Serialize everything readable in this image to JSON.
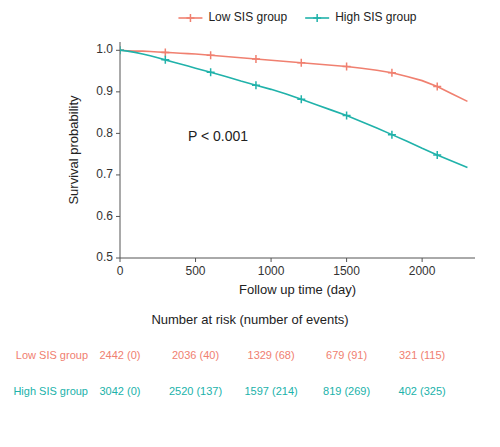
{
  "chart_data": {
    "type": "line",
    "x_label": "Follow up time (day)",
    "y_label": "Survival probability",
    "x": [
      0,
      50,
      100,
      150,
      200,
      250,
      300,
      350,
      400,
      450,
      500,
      600,
      700,
      800,
      900,
      1000,
      1100,
      1200,
      1300,
      1400,
      1500,
      1600,
      1700,
      1800,
      1900,
      2000,
      2100,
      2200,
      2300
    ],
    "series": [
      {
        "name": "Low SIS group",
        "color": "#F08070",
        "marker": "plus",
        "values": [
          1.0,
          0.999,
          0.998,
          0.998,
          0.997,
          0.996,
          0.995,
          0.994,
          0.993,
          0.992,
          0.991,
          0.988,
          0.985,
          0.982,
          0.979,
          0.976,
          0.973,
          0.97,
          0.967,
          0.964,
          0.961,
          0.957,
          0.952,
          0.946,
          0.937,
          0.927,
          0.913,
          0.895,
          0.877
        ],
        "marker_x": [
          0,
          300,
          600,
          900,
          1200,
          1500,
          1800,
          2100
        ],
        "marker_values": [
          1.0,
          0.995,
          0.988,
          0.979,
          0.97,
          0.961,
          0.946,
          0.913
        ]
      },
      {
        "name": "High SIS group",
        "color": "#20B2AA",
        "marker": "plus",
        "values": [
          1.0,
          0.998,
          0.995,
          0.991,
          0.987,
          0.982,
          0.977,
          0.972,
          0.967,
          0.962,
          0.957,
          0.947,
          0.937,
          0.926,
          0.916,
          0.906,
          0.895,
          0.882,
          0.869,
          0.856,
          0.843,
          0.828,
          0.813,
          0.797,
          0.781,
          0.764,
          0.748,
          0.733,
          0.718
        ],
        "marker_x": [
          0,
          300,
          600,
          900,
          1200,
          1500,
          1800,
          2100
        ],
        "marker_values": [
          1.0,
          0.977,
          0.947,
          0.916,
          0.882,
          0.843,
          0.797,
          0.748
        ]
      }
    ],
    "xlim": [
      0,
      2350
    ],
    "ylim": [
      0.5,
      1.02
    ],
    "xticks": [
      0,
      500,
      1000,
      1500,
      2000
    ],
    "yticks": [
      0.5,
      0.6,
      0.7,
      0.8,
      0.9,
      {
        "value": 1.0,
        "label": "1.0"
      }
    ],
    "grid": false,
    "legend": "top",
    "annotations": [
      {
        "text": "P < 0.001",
        "x": 450,
        "y": 0.79
      }
    ],
    "risk_table": {
      "title": "Number at risk (number of events)",
      "x": [
        0,
        500,
        1000,
        1500,
        2000
      ],
      "rows": [
        {
          "name": "Low SIS group",
          "color": "#F08070",
          "labels": [
            "2442 (0)",
            "2036 (40)",
            "1329 (68)",
            "679 (91)",
            "321 (115)"
          ]
        },
        {
          "name": "High SIS group",
          "color": "#20B2AA",
          "labels": [
            "3042 (0)",
            "2520 (137)",
            "1597 (214)",
            "819 (269)",
            "402 (325)"
          ]
        }
      ]
    }
  }
}
